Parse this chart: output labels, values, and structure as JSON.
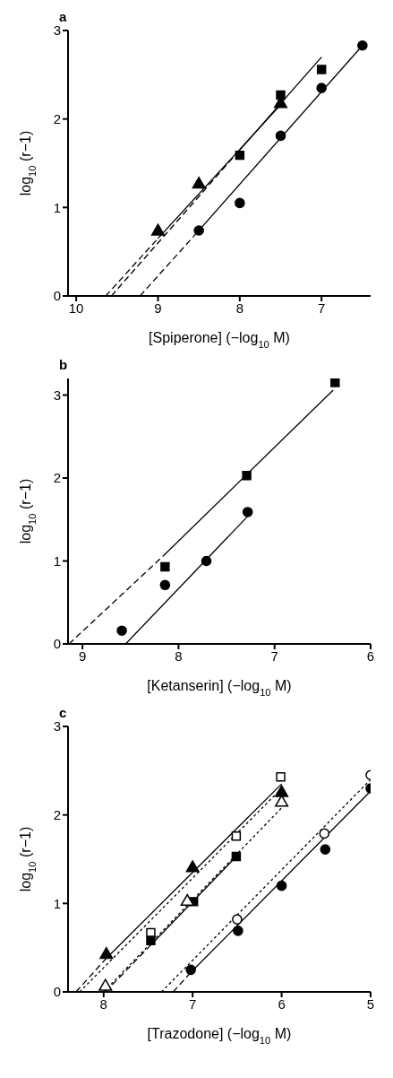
{
  "chart_data": [
    {
      "type": "scatter",
      "title": "a",
      "xlabel": "[Spiperone] (−log$_{10}$ M)",
      "ylabel": "log$_{10}$ (r−1)",
      "xlim": [
        10.1,
        6.4
      ],
      "xticks": [
        10,
        9,
        8,
        7
      ],
      "ylim": [
        0,
        3
      ],
      "yticks": [
        0,
        1,
        2,
        3
      ],
      "series": [
        {
          "type": "line",
          "color": "#000000",
          "marker": "none",
          "line_style": "dashed",
          "x": [
            9.22,
            8.5
          ],
          "values": [
            0,
            0.74
          ]
        },
        {
          "type": "line",
          "color": "#000000",
          "marker": "none",
          "line_style": "solid",
          "x": [
            8.5,
            6.5
          ],
          "values": [
            0.74,
            2.83
          ]
        },
        {
          "type": "line",
          "color": "#000000",
          "marker": "none",
          "line_style": "dashed",
          "x": [
            9.64,
            9.0
          ],
          "values": [
            0,
            0.65
          ]
        },
        {
          "type": "line",
          "color": "#000000",
          "marker": "none",
          "line_style": "solid",
          "x": [
            9.0,
            7.47
          ],
          "values": [
            0.65,
            2.19
          ]
        },
        {
          "type": "line",
          "color": "#000000",
          "marker": "none",
          "line_style": "dashed",
          "x": [
            9.57,
            8.0
          ],
          "values": [
            0,
            1.65
          ]
        },
        {
          "type": "line",
          "color": "#000000",
          "marker": "none",
          "line_style": "solid",
          "x": [
            8.0,
            7.0
          ],
          "values": [
            1.65,
            2.7
          ]
        },
        {
          "color": "#000000",
          "marker": "circle",
          "x": [
            8.5,
            8.0,
            7.5,
            7.0,
            6.5
          ],
          "values": [
            0.74,
            1.05,
            1.81,
            2.35,
            2.83
          ]
        },
        {
          "color": "#000000",
          "marker": "square",
          "x": [
            8.0,
            7.5,
            7.0
          ],
          "values": [
            1.59,
            2.27,
            2.56
          ]
        },
        {
          "color": "#000000",
          "marker": "triangle",
          "x": [
            9.0,
            8.5,
            7.5
          ],
          "values": [
            0.73,
            1.26,
            2.17
          ]
        }
      ]
    },
    {
      "type": "scatter",
      "title": "b",
      "xlabel": "[Ketanserin] (−log$_{10}$ M)",
      "ylabel": "log$_{10}$ (r−1)",
      "xlim": [
        9.15,
        6.0
      ],
      "xticks": [
        9,
        8,
        7,
        6
      ],
      "ylim": [
        0,
        3.2
      ],
      "yticks": [
        0,
        1,
        2,
        3
      ],
      "series": [
        {
          "type": "line",
          "color": "#000000",
          "marker": "none",
          "line_style": "dashed",
          "x": [
            9.14,
            8.16
          ],
          "values": [
            0,
            1.06
          ]
        },
        {
          "type": "line",
          "color": "#000000",
          "marker": "none",
          "line_style": "solid",
          "x": [
            8.16,
            6.39
          ],
          "values": [
            1.06,
            3.06
          ]
        },
        {
          "type": "line",
          "color": "#000000",
          "marker": "none",
          "line_style": "solid",
          "x": [
            8.55,
            7.27
          ],
          "values": [
            0,
            1.55
          ]
        },
        {
          "color": "#000000",
          "marker": "square",
          "x": [
            8.14,
            7.29,
            6.37
          ],
          "values": [
            0.93,
            2.03,
            3.15
          ]
        },
        {
          "color": "#000000",
          "marker": "circle",
          "x": [
            8.59,
            8.14,
            7.71,
            7.28
          ],
          "values": [
            0.16,
            0.71,
            1.0,
            1.59
          ]
        }
      ]
    },
    {
      "type": "scatter",
      "title": "c",
      "xlabel": "[Trazodone] (−log$_{10}$ M)",
      "ylabel": "log$_{10}$ (r−1)",
      "xlim": [
        8.4,
        5.0
      ],
      "xticks": [
        8,
        7,
        6,
        5
      ],
      "ylim": [
        0,
        3
      ],
      "yticks": [
        0,
        1,
        2,
        3
      ],
      "series": [
        {
          "type": "line",
          "color": "#000000",
          "marker": "none",
          "line_style": "dashed",
          "x": [
            8.31,
            7.97
          ],
          "values": [
            0,
            0.38
          ]
        },
        {
          "type": "line",
          "color": "#000000",
          "marker": "none",
          "line_style": "solid",
          "x": [
            7.97,
            6.0
          ],
          "values": [
            0.38,
            2.35
          ]
        },
        {
          "type": "line",
          "color": "#000000",
          "marker": "none",
          "line_style": "dotted",
          "x": [
            8.27,
            6.0
          ],
          "values": [
            0,
            2.3
          ]
        },
        {
          "type": "line",
          "color": "#000000",
          "marker": "none",
          "line_style": "dashed",
          "x": [
            7.98,
            7.45
          ],
          "values": [
            0,
            0.55
          ]
        },
        {
          "type": "line",
          "color": "#000000",
          "marker": "none",
          "line_style": "solid",
          "x": [
            7.45,
            6.5
          ],
          "values": [
            0.55,
            1.54
          ]
        },
        {
          "type": "line",
          "color": "#000000",
          "marker": "none",
          "line_style": "dotted",
          "x": [
            8.0,
            6.0
          ],
          "values": [
            0,
            2.08
          ]
        },
        {
          "type": "line",
          "color": "#000000",
          "marker": "none",
          "line_style": "dotted",
          "x": [
            7.35,
            5.0
          ],
          "values": [
            0,
            2.4
          ]
        },
        {
          "type": "line",
          "color": "#000000",
          "marker": "none",
          "line_style": "dashed",
          "x": [
            7.22,
            7.02
          ],
          "values": [
            0,
            0.22
          ]
        },
        {
          "type": "line",
          "color": "#000000",
          "marker": "none",
          "line_style": "solid",
          "x": [
            7.02,
            5.0
          ],
          "values": [
            0.22,
            2.27
          ]
        },
        {
          "color": "#000000",
          "marker": "triangle",
          "x": [
            7.97,
            7.0,
            6.0
          ],
          "values": [
            0.42,
            1.4,
            2.25
          ]
        },
        {
          "color": "#ffffff",
          "marker": "square",
          "x": [
            7.47,
            6.51,
            6.01
          ],
          "values": [
            0.67,
            1.76,
            2.43
          ]
        },
        {
          "color": "#000000",
          "marker": "square",
          "x": [
            7.47,
            6.99,
            6.51
          ],
          "values": [
            0.58,
            1.02,
            1.53
          ]
        },
        {
          "color": "#ffffff",
          "marker": "triangle",
          "x": [
            7.98,
            7.06,
            6.0
          ],
          "values": [
            0.06,
            1.02,
            2.14
          ]
        },
        {
          "color": "#000000",
          "marker": "circle",
          "x": [
            7.02,
            6.49,
            6.0,
            5.51,
            5.0
          ],
          "values": [
            0.25,
            0.69,
            1.2,
            1.61,
            2.3
          ]
        },
        {
          "color": "#ffffff",
          "marker": "circle",
          "x": [
            6.5,
            5.52,
            5.0
          ],
          "values": [
            0.82,
            1.79,
            2.45
          ]
        }
      ]
    }
  ]
}
